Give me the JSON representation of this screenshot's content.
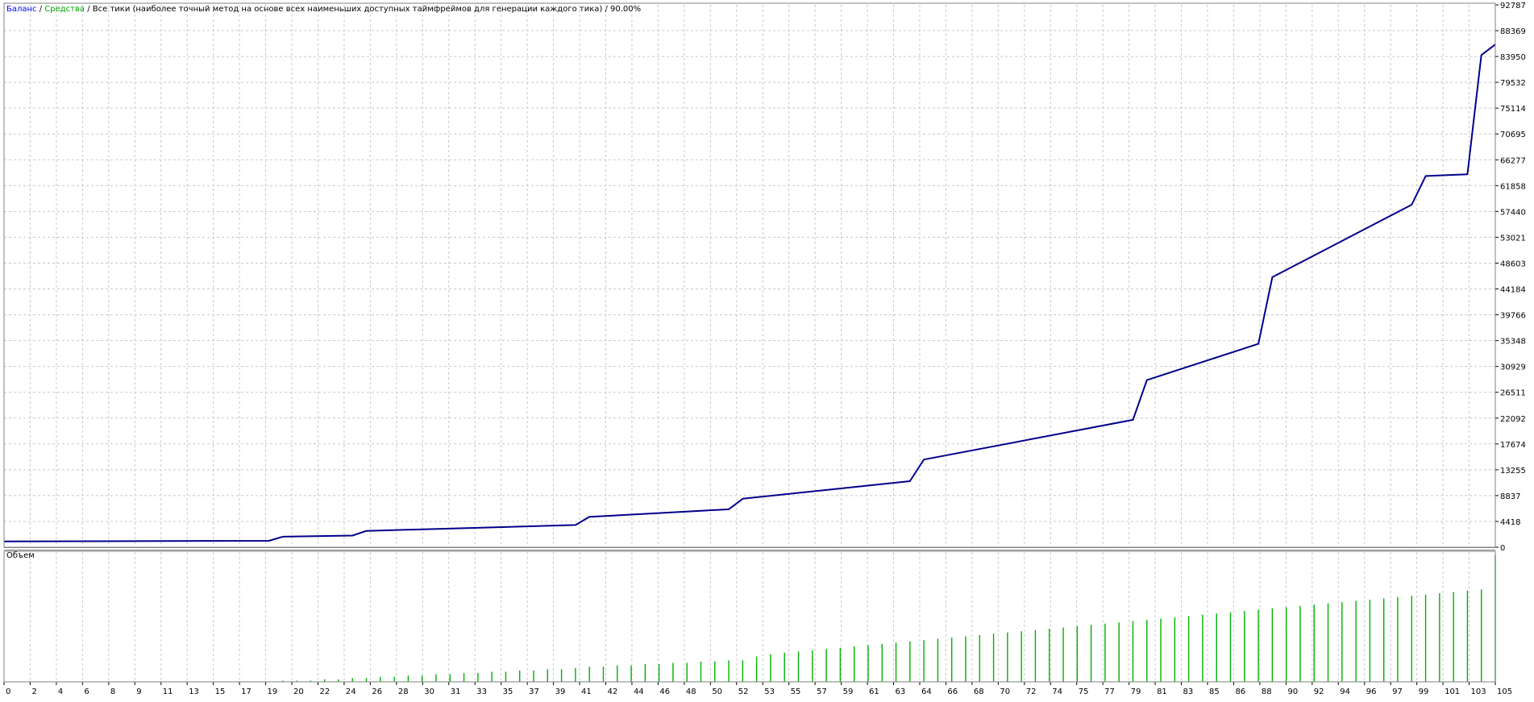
{
  "header": {
    "balance_label": "Баланс",
    "equity_label": "Средства",
    "sep": " / ",
    "description": "Все тики (наиболее точный метод на основе всех наименьших доступных таймфреймов для генерации каждого тика)",
    "quality": "90.00%"
  },
  "volume_pane": {
    "title": "Объем"
  },
  "colors": {
    "background": "#ffffff",
    "balance_line": "#00008b",
    "balance_text": "#0000ff",
    "equity_text": "#00a000",
    "volume_bars": "#00b000",
    "grid": "#c8c8c8",
    "axis": "#000000"
  },
  "chart_data": [
    {
      "type": "line",
      "series": [
        {
          "name": "Баланс",
          "x": [
            0,
            19,
            20,
            25,
            26,
            41,
            42,
            52,
            53,
            65,
            66,
            81,
            82,
            90,
            91,
            101,
            102,
            105,
            106,
            107
          ],
          "y": [
            1000,
            1100,
            1800,
            2000,
            2800,
            3800,
            5200,
            6500,
            8300,
            11300,
            15000,
            21800,
            28600,
            34800,
            46200,
            58600,
            63500,
            63800,
            84200,
            86000
          ]
        }
      ],
      "grid": true,
      "y_ticks": [
        "92787",
        "88369",
        "83950",
        "79532",
        "75114",
        "70695",
        "66277",
        "61858",
        "57440",
        "53021",
        "48603",
        "44184",
        "39766",
        "35348",
        "30929",
        "26511",
        "22092",
        "17674",
        "13255",
        "8837",
        "4418",
        "0"
      ],
      "ylim": [
        0,
        92787
      ],
      "xlim": [
        0,
        107
      ]
    },
    {
      "type": "bar",
      "title": "Объем",
      "x": [
        0,
        1,
        2,
        3,
        4,
        5,
        6,
        7,
        8,
        9,
        10,
        11,
        12,
        13,
        14,
        15,
        16,
        17,
        18,
        19,
        20,
        21,
        22,
        23,
        24,
        25,
        26,
        27,
        28,
        29,
        30,
        31,
        32,
        33,
        34,
        35,
        36,
        37,
        38,
        39,
        40,
        41,
        42,
        43,
        44,
        45,
        46,
        47,
        48,
        49,
        50,
        51,
        52,
        53,
        54,
        55,
        56,
        57,
        58,
        59,
        60,
        61,
        62,
        63,
        64,
        65,
        66,
        67,
        68,
        69,
        70,
        71,
        72,
        73,
        74,
        75,
        76,
        77,
        78,
        79,
        80,
        81,
        82,
        83,
        84,
        85,
        86,
        87,
        88,
        89,
        90,
        91,
        92,
        93,
        94,
        95,
        96,
        97,
        98,
        99,
        100,
        101,
        102,
        103,
        104,
        105,
        106,
        107
      ],
      "values": [
        0,
        0,
        0,
        0,
        0,
        0,
        0,
        0,
        0,
        0,
        0,
        0,
        0,
        0,
        0,
        0,
        0,
        0,
        0,
        0,
        1,
        1,
        1,
        2,
        2,
        3,
        3,
        4,
        4,
        5,
        5,
        6,
        6,
        7,
        7,
        8,
        8,
        9,
        9,
        10,
        10,
        11,
        12,
        12,
        13,
        13,
        14,
        14,
        15,
        15,
        16,
        16,
        17,
        17,
        20,
        22,
        23,
        24,
        25,
        26,
        27,
        28,
        29,
        30,
        31,
        32,
        33,
        34,
        35,
        36,
        37,
        38,
        39,
        40,
        41,
        42,
        43,
        44,
        45,
        46,
        47,
        48,
        49,
        50,
        51,
        52,
        53,
        54,
        55,
        56,
        57,
        58,
        59,
        60,
        61,
        62,
        63,
        64,
        65,
        66,
        67,
        68,
        69,
        70,
        71,
        72,
        73,
        100
      ],
      "x_ticks": [
        "0",
        "2",
        "4",
        "6",
        "8",
        "9",
        "11",
        "13",
        "15",
        "17",
        "19",
        "20",
        "22",
        "24",
        "26",
        "28",
        "30",
        "31",
        "33",
        "35",
        "37",
        "39",
        "41",
        "42",
        "44",
        "46",
        "48",
        "50",
        "52",
        "53",
        "55",
        "57",
        "59",
        "61",
        "63",
        "64",
        "66",
        "68",
        "70",
        "72",
        "74",
        "75",
        "77",
        "79",
        "81",
        "83",
        "85",
        "86",
        "88",
        "90",
        "92",
        "94",
        "96",
        "97",
        "99",
        "101",
        "103",
        "105"
      ]
    }
  ]
}
